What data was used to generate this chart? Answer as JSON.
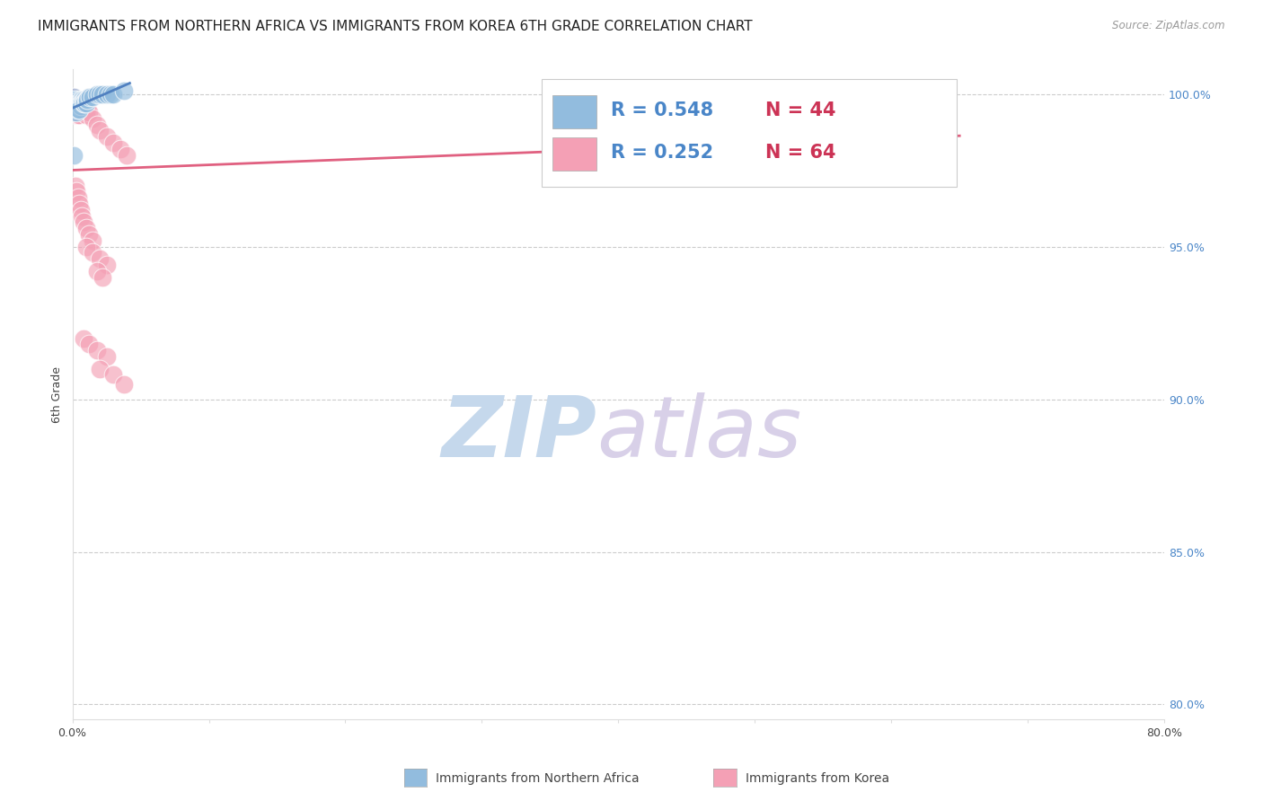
{
  "title": "IMMIGRANTS FROM NORTHERN AFRICA VS IMMIGRANTS FROM KOREA 6TH GRADE CORRELATION CHART",
  "source": "Source: ZipAtlas.com",
  "ylabel": "6th Grade",
  "legend_blue_r": "0.548",
  "legend_blue_n": "44",
  "legend_pink_r": "0.252",
  "legend_pink_n": "64",
  "blue_color": "#92bcde",
  "pink_color": "#f4a0b5",
  "blue_line_color": "#5080c0",
  "pink_line_color": "#e06080",
  "legend_r_color": "#4a86c8",
  "legend_n_color": "#cc3355",
  "watermark_zip_color": "#c5d8ec",
  "watermark_atlas_color": "#d8d0e8",
  "xlim": [
    0.0,
    0.8
  ],
  "ylim": [
    0.795,
    1.008
  ],
  "ytick_positions": [
    1.0,
    0.95,
    0.9,
    0.85,
    0.8
  ],
  "ytick_labels": [
    "100.0%",
    "95.0%",
    "90.0%",
    "85.0%",
    "80.0%"
  ],
  "xtick_positions": [
    0.0,
    0.1,
    0.2,
    0.3,
    0.4,
    0.5,
    0.6,
    0.7,
    0.8
  ],
  "xtick_labels": [
    "0.0%",
    "",
    "",
    "",
    "",
    "",
    "",
    "",
    "80.0%"
  ],
  "grid_color": "#cccccc",
  "background_color": "#ffffff",
  "title_fontsize": 11,
  "axis_label_fontsize": 9,
  "tick_fontsize": 9,
  "blue_scatter_x": [
    0.001,
    0.002,
    0.001,
    0.003,
    0.002,
    0.001,
    0.004,
    0.003,
    0.002,
    0.001,
    0.005,
    0.004,
    0.003,
    0.002,
    0.006,
    0.005,
    0.004,
    0.003,
    0.007,
    0.006,
    0.005,
    0.004,
    0.008,
    0.007,
    0.006,
    0.005,
    0.009,
    0.008,
    0.01,
    0.009,
    0.011,
    0.01,
    0.012,
    0.011,
    0.013,
    0.015,
    0.018,
    0.02,
    0.022,
    0.025,
    0.028,
    0.03,
    0.001,
    0.038
  ],
  "blue_scatter_y": [
    0.998,
    0.997,
    0.996,
    0.998,
    0.995,
    0.999,
    0.997,
    0.996,
    0.998,
    0.994,
    0.998,
    0.997,
    0.996,
    0.995,
    0.998,
    0.997,
    0.996,
    0.994,
    0.998,
    0.997,
    0.996,
    0.995,
    0.998,
    0.997,
    0.996,
    0.995,
    0.998,
    0.997,
    0.998,
    0.997,
    0.998,
    0.997,
    0.999,
    0.998,
    0.999,
    0.999,
    1.0,
    1.0,
    1.0,
    1.0,
    1.0,
    1.0,
    0.98,
    1.001
  ],
  "pink_scatter_x": [
    0.001,
    0.002,
    0.001,
    0.003,
    0.002,
    0.001,
    0.004,
    0.003,
    0.002,
    0.001,
    0.005,
    0.004,
    0.003,
    0.002,
    0.006,
    0.005,
    0.004,
    0.003,
    0.007,
    0.006,
    0.005,
    0.004,
    0.008,
    0.007,
    0.006,
    0.005,
    0.009,
    0.008,
    0.01,
    0.009,
    0.011,
    0.01,
    0.012,
    0.015,
    0.018,
    0.02,
    0.025,
    0.03,
    0.035,
    0.04,
    0.002,
    0.003,
    0.004,
    0.005,
    0.006,
    0.007,
    0.008,
    0.01,
    0.012,
    0.015,
    0.01,
    0.015,
    0.02,
    0.025,
    0.018,
    0.022,
    0.008,
    0.012,
    0.018,
    0.025,
    0.02,
    0.03,
    0.038,
    0.6
  ],
  "pink_scatter_y": [
    0.997,
    0.996,
    0.998,
    0.997,
    0.995,
    0.999,
    0.996,
    0.995,
    0.997,
    0.994,
    0.997,
    0.996,
    0.995,
    0.994,
    0.997,
    0.996,
    0.995,
    0.993,
    0.997,
    0.996,
    0.995,
    0.993,
    0.997,
    0.996,
    0.994,
    0.993,
    0.996,
    0.995,
    0.996,
    0.994,
    0.995,
    0.993,
    0.994,
    0.992,
    0.99,
    0.988,
    0.986,
    0.984,
    0.982,
    0.98,
    0.97,
    0.968,
    0.966,
    0.964,
    0.962,
    0.96,
    0.958,
    0.956,
    0.954,
    0.952,
    0.95,
    0.948,
    0.946,
    0.944,
    0.942,
    0.94,
    0.92,
    0.918,
    0.916,
    0.914,
    0.91,
    0.908,
    0.905,
    1.001
  ]
}
